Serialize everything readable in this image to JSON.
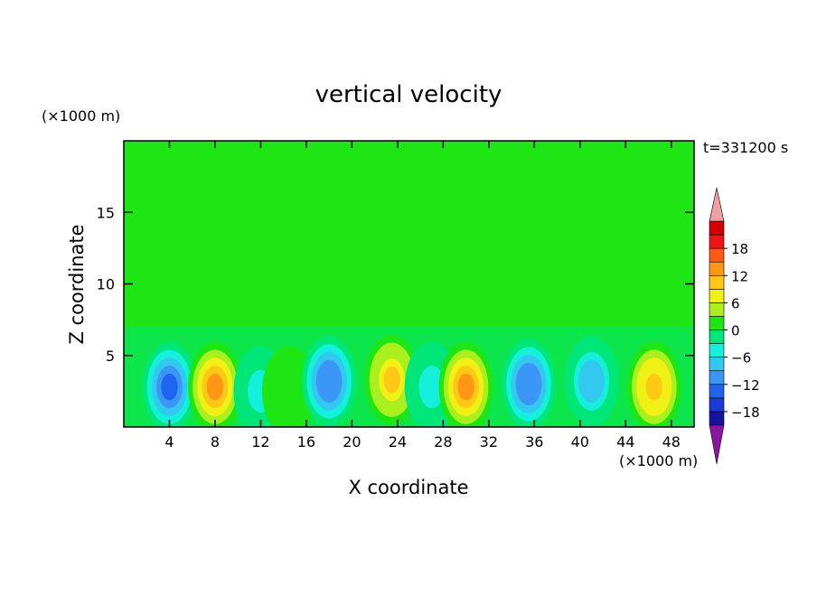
{
  "chart_data": {
    "type": "heatmap",
    "title": "vertical velocity",
    "time_label": "t=331200 s",
    "xlabel": "X coordinate",
    "ylabel": "Z coordinate",
    "x_unit": "(×1000 m)",
    "y_unit": "(×1000 m)",
    "xlim": [
      0,
      50
    ],
    "ylim": [
      0,
      20
    ],
    "xticks": [
      4,
      8,
      12,
      16,
      20,
      24,
      28,
      32,
      36,
      40,
      44,
      48
    ],
    "yticks": [
      5,
      10,
      15
    ],
    "grid": false,
    "colorbar": {
      "range": [
        -21,
        21
      ],
      "labels": [
        18,
        12,
        6,
        0,
        -6,
        -12,
        -18
      ],
      "levels": [
        -21,
        -18,
        -15,
        -12,
        -9,
        -6,
        -3,
        0,
        3,
        6,
        9,
        12,
        15,
        18,
        21
      ],
      "colors": [
        "#4a1a8c",
        "#1414a0",
        "#1a3cd2",
        "#1e64f0",
        "#3c96f5",
        "#32c8f0",
        "#14f0dc",
        "#00e678",
        "#1ee614",
        "#aaf01e",
        "#f0f014",
        "#ffc814",
        "#ff9614",
        "#ff5a14",
        "#f01414",
        "#d20000"
      ],
      "under_color": "#8c14a0",
      "over_color": "#f0a0a0"
    },
    "cells": [
      {
        "x": 4,
        "z": 2.8,
        "value": -13
      },
      {
        "x": 8,
        "z": 2.8,
        "value": 14
      },
      {
        "x": 12,
        "z": 2.5,
        "value": -5
      },
      {
        "x": 14.5,
        "z": 2.5,
        "value": 2
      },
      {
        "x": 18,
        "z": 3.2,
        "value": -12
      },
      {
        "x": 23.5,
        "z": 3.3,
        "value": 10
      },
      {
        "x": 27,
        "z": 2.8,
        "value": -5
      },
      {
        "x": 30,
        "z": 2.8,
        "value": 12
      },
      {
        "x": 35.5,
        "z": 3.0,
        "value": -12
      },
      {
        "x": 41,
        "z": 3.2,
        "value": -8
      },
      {
        "x": 46.5,
        "z": 2.8,
        "value": 11
      }
    ]
  }
}
